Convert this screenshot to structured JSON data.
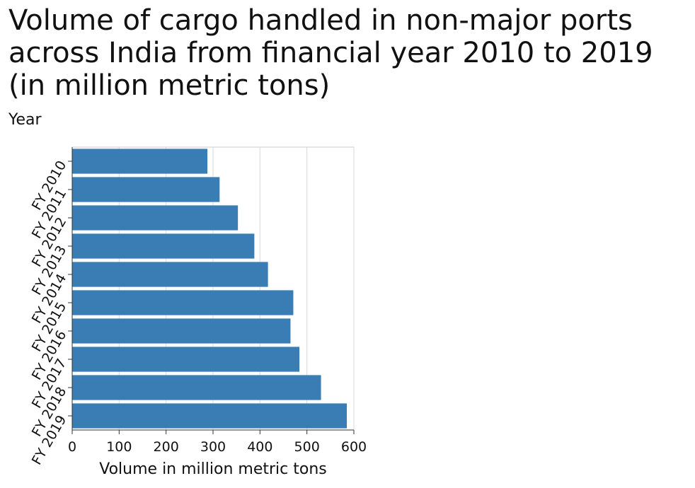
{
  "chart_data": {
    "type": "bar",
    "orientation": "horizontal",
    "title": "Volume of cargo handled in non-major ports across India from financial year 2010 to 2019 (in million metric tons)",
    "xlabel": "Volume in million metric tons",
    "ylabel": "Year",
    "categories": [
      "FY 2010",
      "FY 2011",
      "FY 2012",
      "FY 2013",
      "FY 2014",
      "FY 2015",
      "FY 2016",
      "FY 2017",
      "FY 2018",
      "FY 2019"
    ],
    "values": [
      288,
      314,
      353,
      388,
      417,
      471,
      465,
      484,
      530,
      585
    ],
    "xlim": [
      0,
      600
    ],
    "xticks": [
      0,
      100,
      200,
      300,
      400,
      500,
      600
    ],
    "grid": true,
    "bar_color": "#3a7db5"
  }
}
